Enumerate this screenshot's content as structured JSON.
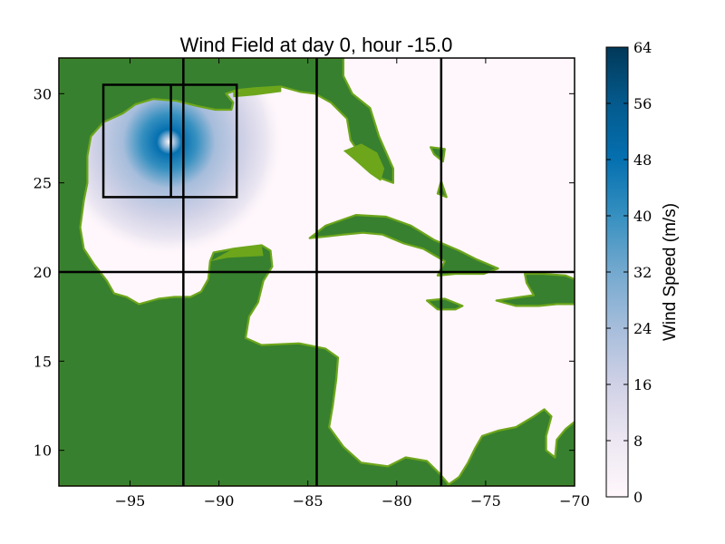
{
  "chart_data": {
    "type": "heatmap",
    "title": "Wind Field at day 0, hour -15.0",
    "xlabel": "",
    "ylabel": "",
    "xlim": [
      -99,
      -70
    ],
    "ylim": [
      8,
      32
    ],
    "x_ticks": [
      -95,
      -90,
      -85,
      -80,
      -75,
      -70
    ],
    "y_ticks": [
      10,
      15,
      20,
      25,
      30
    ],
    "x_tick_labels": [
      "−95",
      "−90",
      "−85",
      "−80",
      "−75",
      "−70"
    ],
    "y_tick_labels": [
      "10",
      "15",
      "20",
      "25",
      "30"
    ],
    "colorbar": {
      "label": "Wind Speed (m/s)",
      "min": 0,
      "max": 64,
      "ticks": [
        0,
        8,
        16,
        24,
        32,
        40,
        48,
        56,
        64
      ],
      "tick_labels": [
        "0",
        "8",
        "16",
        "24",
        "32",
        "40",
        "48",
        "56",
        "64"
      ]
    },
    "storm": {
      "center_lon": -92.8,
      "center_lat": 27.3,
      "max_wind_ms": 44,
      "radius_max_wind_deg": 0.7,
      "extent_deg": 6.5
    },
    "grid_lines": {
      "lon": [
        -92,
        -84.5,
        -77.5
      ],
      "lat": [
        20
      ]
    },
    "boxes": [
      {
        "lon_min": -96.5,
        "lon_max": -89,
        "lat_min": 24.2,
        "lat_max": 30.5
      },
      {
        "lon_min": -92.7,
        "lon_max": -92.7,
        "lat_min": 24.2,
        "lat_max": 30.5
      }
    ],
    "colors": {
      "land": "#37802f",
      "land_edge": "#6da61b",
      "sea_background": "#fff7fb",
      "colormap": [
        "#fff7fb",
        "#ece7f2",
        "#d0d1e6",
        "#a6bddb",
        "#74a9cf",
        "#3690c0",
        "#0570b0",
        "#045a8d",
        "#023858"
      ]
    },
    "land_polygons": [
      [
        [
          -99,
          32
        ],
        [
          -83,
          32
        ],
        [
          -83,
          31
        ],
        [
          -82.5,
          30
        ],
        [
          -81.5,
          29.2
        ],
        [
          -81,
          27.6
        ],
        [
          -80.2,
          25.8
        ],
        [
          -80.2,
          25
        ],
        [
          -81,
          25.3
        ],
        [
          -81.8,
          26.2
        ],
        [
          -82.6,
          27.4
        ],
        [
          -82.8,
          28.6
        ],
        [
          -83.7,
          29.5
        ],
        [
          -84.6,
          30
        ],
        [
          -85.4,
          30.1
        ],
        [
          -86.5,
          30.4
        ],
        [
          -88,
          30.3
        ],
        [
          -89,
          30.2
        ],
        [
          -89.6,
          30
        ],
        [
          -89.2,
          29.5
        ],
        [
          -89.3,
          29.1
        ],
        [
          -90.2,
          29.1
        ],
        [
          -91.2,
          29.3
        ],
        [
          -92.4,
          29.6
        ],
        [
          -93.7,
          29.7
        ],
        [
          -94.7,
          29.4
        ],
        [
          -95.4,
          28.9
        ],
        [
          -96.5,
          28.4
        ],
        [
          -97.2,
          27.6
        ],
        [
          -97.4,
          26.5
        ],
        [
          -97.4,
          25
        ],
        [
          -97.6,
          24
        ],
        [
          -97.8,
          22.5
        ],
        [
          -97.6,
          21.3
        ],
        [
          -97.0,
          20.4
        ],
        [
          -96.3,
          19.5
        ],
        [
          -95.9,
          18.8
        ],
        [
          -95.2,
          18.6
        ],
        [
          -94.5,
          18.2
        ],
        [
          -93.4,
          18.5
        ],
        [
          -92.5,
          18.6
        ],
        [
          -91.6,
          18.6
        ],
        [
          -91.0,
          18.9
        ],
        [
          -90.6,
          19.6
        ],
        [
          -90.5,
          20.6
        ],
        [
          -90.3,
          21.1
        ],
        [
          -89.2,
          21.3
        ],
        [
          -87.6,
          21.5
        ],
        [
          -87.1,
          21.2
        ],
        [
          -87.0,
          20.3
        ],
        [
          -87.5,
          19.5
        ],
        [
          -87.8,
          18.3
        ],
        [
          -88.3,
          17.5
        ],
        [
          -88.5,
          16.3
        ],
        [
          -87.6,
          15.9
        ],
        [
          -85.5,
          16.0
        ],
        [
          -84.0,
          15.7
        ],
        [
          -83.3,
          15.2
        ],
        [
          -83.4,
          14.0
        ],
        [
          -83.6,
          12.5
        ],
        [
          -83.8,
          11.3
        ],
        [
          -83.0,
          10.2
        ],
        [
          -82.0,
          9.3
        ],
        [
          -80.5,
          9.1
        ],
        [
          -79.5,
          9.6
        ],
        [
          -78.3,
          9.4
        ],
        [
          -77.6,
          8.7
        ],
        [
          -77.0,
          8.0
        ],
        [
          -99,
          8
        ]
      ],
      [
        [
          -77.2,
          8
        ],
        [
          -76.5,
          8.5
        ],
        [
          -76.0,
          9.3
        ],
        [
          -75.6,
          10.1
        ],
        [
          -75.2,
          10.8
        ],
        [
          -74.3,
          11.1
        ],
        [
          -73.3,
          11.3
        ],
        [
          -72.3,
          11.9
        ],
        [
          -71.7,
          12.3
        ],
        [
          -71.3,
          11.9
        ],
        [
          -71.6,
          10.8
        ],
        [
          -71.6,
          10.0
        ],
        [
          -71.1,
          9.6
        ],
        [
          -71.0,
          10.6
        ],
        [
          -70.5,
          11.2
        ],
        [
          -70,
          11.6
        ],
        [
          -70,
          8
        ]
      ],
      [
        [
          -84.9,
          21.9
        ],
        [
          -84.0,
          22.6
        ],
        [
          -82.3,
          23.2
        ],
        [
          -80.6,
          23.1
        ],
        [
          -79.2,
          22.6
        ],
        [
          -77.9,
          21.8
        ],
        [
          -76.5,
          21.2
        ],
        [
          -75.5,
          20.7
        ],
        [
          -74.3,
          20.2
        ],
        [
          -75.1,
          19.9
        ],
        [
          -76.7,
          19.9
        ],
        [
          -77.7,
          19.8
        ],
        [
          -77.3,
          20.6
        ],
        [
          -78.5,
          21.3
        ],
        [
          -79.6,
          21.6
        ],
        [
          -80.8,
          22.1
        ],
        [
          -81.9,
          22.2
        ],
        [
          -83.0,
          22.1
        ],
        [
          -83.9,
          22.0
        ]
      ],
      [
        [
          -78.3,
          18.4
        ],
        [
          -77.3,
          18.5
        ],
        [
          -76.3,
          18.1
        ],
        [
          -76.7,
          17.9
        ],
        [
          -77.7,
          17.9
        ]
      ],
      [
        [
          -74.4,
          18.4
        ],
        [
          -73.0,
          18.6
        ],
        [
          -72.3,
          18.7
        ],
        [
          -72.7,
          19.4
        ],
        [
          -72.8,
          19.9
        ],
        [
          -71.8,
          19.9
        ],
        [
          -70.5,
          19.8
        ],
        [
          -70,
          19.6
        ],
        [
          -70,
          18.2
        ],
        [
          -71.0,
          18.2
        ],
        [
          -72.0,
          18.1
        ],
        [
          -73.3,
          18.1
        ]
      ],
      [
        [
          -78.1,
          27.0
        ],
        [
          -77.3,
          26.9
        ],
        [
          -77.4,
          26.2
        ],
        [
          -77.9,
          26.6
        ]
      ],
      [
        [
          -77.5,
          25.1
        ],
        [
          -77.2,
          24.2
        ],
        [
          -77.7,
          24.4
        ]
      ]
    ],
    "edge_polygons": [
      [
        [
          -89.2,
          30.1
        ],
        [
          -88.0,
          30.3
        ],
        [
          -86.5,
          30.4
        ],
        [
          -86.5,
          30.1
        ],
        [
          -88.0,
          29.9
        ],
        [
          -89.2,
          29.8
        ]
      ],
      [
        [
          -83.0,
          26.8
        ],
        [
          -82.4,
          26.3
        ],
        [
          -81.5,
          25.5
        ],
        [
          -80.9,
          25.1
        ],
        [
          -80.7,
          25.8
        ],
        [
          -81.1,
          26.7
        ],
        [
          -82.0,
          27.2
        ]
      ],
      [
        [
          -90.5,
          20.6
        ],
        [
          -89.2,
          21.3
        ],
        [
          -87.6,
          21.5
        ],
        [
          -87.5,
          20.9
        ],
        [
          -89.5,
          20.8
        ]
      ]
    ]
  }
}
